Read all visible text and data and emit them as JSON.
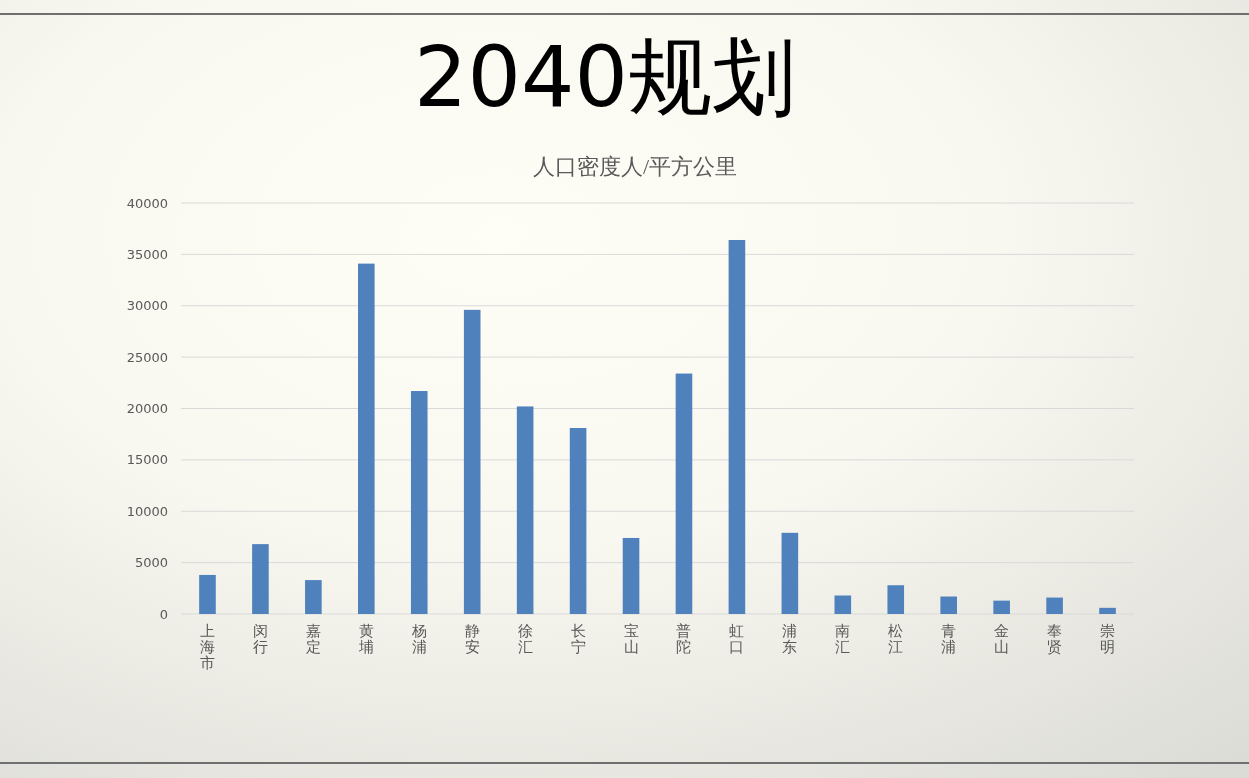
{
  "chart_data": {
    "type": "bar",
    "title": "2040规划",
    "subtitle": "人口密度人/平方公里",
    "categories": [
      "上海市",
      "闵行",
      "嘉定",
      "黄埔",
      "杨浦",
      "静安",
      "徐汇",
      "长宁",
      "宝山",
      "普陀",
      "虹口",
      "浦东",
      "南汇",
      "松江",
      "青浦",
      "金山",
      "奉贤",
      "崇明"
    ],
    "values": [
      3800,
      6800,
      3300,
      34100,
      21700,
      29600,
      20200,
      18100,
      7400,
      23400,
      36400,
      7900,
      1800,
      2800,
      1700,
      1300,
      1600,
      600
    ],
    "color": "#4f81bd",
    "ylim": [
      0,
      40000
    ],
    "yticks": [
      0,
      5000,
      10000,
      15000,
      20000,
      25000,
      30000,
      35000,
      40000
    ],
    "grid": "y"
  }
}
